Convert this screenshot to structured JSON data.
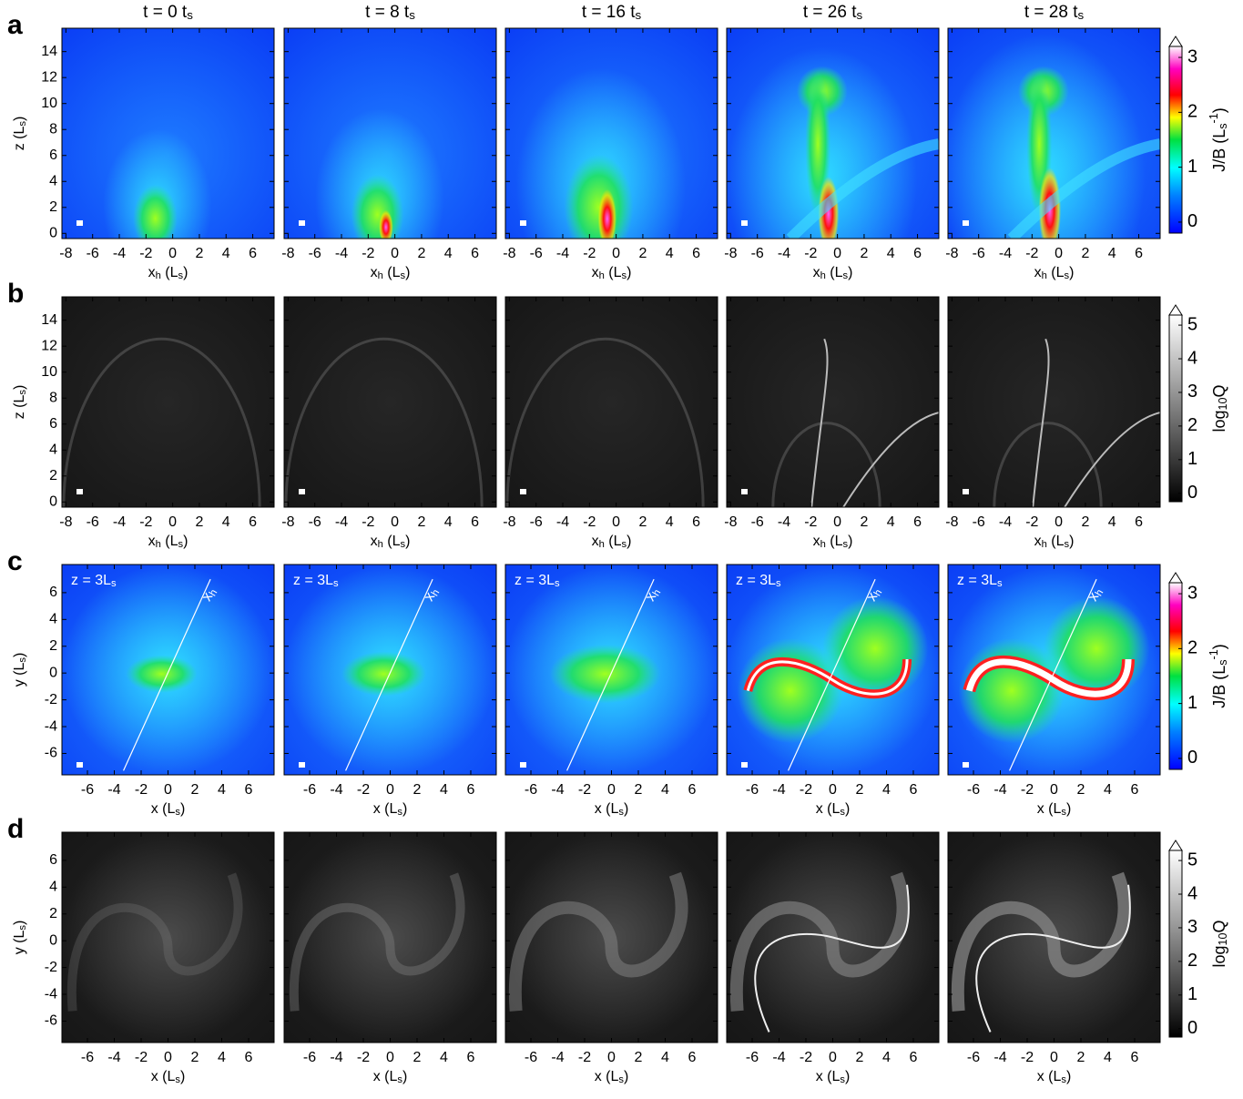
{
  "columns": [
    [
      {
        "text": "t = 0 t"
      },
      {
        "text": "s",
        "sub": true
      }
    ],
    [
      {
        "text": "t = 8 t"
      },
      {
        "text": "s",
        "sub": true
      }
    ],
    [
      {
        "text": "t = 16 t"
      },
      {
        "text": "s",
        "sub": true
      }
    ],
    [
      {
        "text": "t = 26 t"
      },
      {
        "text": "s",
        "sub": true
      }
    ],
    [
      {
        "text": "t = 28 t"
      },
      {
        "text": "s",
        "sub": true
      }
    ]
  ],
  "rows": [
    {
      "label": "a",
      "colormap": "jet",
      "x_label": [
        {
          "text": "x"
        },
        {
          "text": "h",
          "sub": true
        },
        {
          "text": " (L"
        },
        {
          "text": "s",
          "sub": true
        },
        {
          "text": ")"
        }
      ],
      "y_label": [
        {
          "text": "z (L"
        },
        {
          "text": "s",
          "sub": true
        },
        {
          "text": ")"
        }
      ],
      "xlim": [
        -8.3,
        7.6
      ],
      "ylim": [
        -0.4,
        15.8
      ],
      "xticks": [
        -8,
        -6,
        -4,
        -2,
        0,
        2,
        4,
        6
      ],
      "yticks": [
        0,
        2,
        4,
        6,
        8,
        10,
        12,
        14
      ],
      "colorbar": {
        "label": [
          {
            "text": "J/B (L"
          },
          {
            "text": "s",
            "sub": true
          },
          {
            "text": "-1",
            "sup": true
          },
          {
            "text": ")"
          }
        ],
        "lim": [
          -0.2,
          3.2
        ],
        "ticks": [
          0,
          1,
          2,
          3
        ]
      }
    },
    {
      "label": "b",
      "colormap": "gray",
      "x_label": [
        {
          "text": "x"
        },
        {
          "text": "h",
          "sub": true
        },
        {
          "text": " (L"
        },
        {
          "text": "s",
          "sub": true
        },
        {
          "text": ")"
        }
      ],
      "y_label": [
        {
          "text": "z (L"
        },
        {
          "text": "s",
          "sub": true
        },
        {
          "text": ")"
        }
      ],
      "xlim": [
        -8.3,
        7.6
      ],
      "ylim": [
        -0.4,
        15.8
      ],
      "xticks": [
        -8,
        -6,
        -4,
        -2,
        0,
        2,
        4,
        6
      ],
      "yticks": [
        0,
        2,
        4,
        6,
        8,
        10,
        12,
        14
      ],
      "colorbar": {
        "label": [
          {
            "text": "log"
          },
          {
            "text": "10",
            "sub": true
          },
          {
            "text": "Q"
          }
        ],
        "lim": [
          -0.25,
          5.3
        ],
        "ticks": [
          0,
          1,
          2,
          3,
          4,
          5
        ]
      }
    },
    {
      "label": "c",
      "colormap": "jet",
      "x_label": [
        {
          "text": "x (L"
        },
        {
          "text": "s",
          "sub": true
        },
        {
          "text": ")"
        }
      ],
      "y_label": [
        {
          "text": "y (L"
        },
        {
          "text": "s",
          "sub": true
        },
        {
          "text": ")"
        }
      ],
      "xlim": [
        -7.9,
        7.9
      ],
      "ylim": [
        -7.6,
        8.1
      ],
      "xticks": [
        -6,
        -4,
        -2,
        0,
        2,
        4,
        6
      ],
      "yticks": [
        -6,
        -4,
        -2,
        0,
        2,
        4,
        6
      ],
      "annotation": [
        {
          "text": "z = 3L"
        },
        {
          "text": "s",
          "sub": true
        }
      ],
      "line_label": [
        {
          "text": "x"
        },
        {
          "text": "h",
          "sub": true
        }
      ],
      "colorbar": {
        "label": [
          {
            "text": "J/B (L"
          },
          {
            "text": "s",
            "sub": true
          },
          {
            "text": "-1",
            "sup": true
          },
          {
            "text": ")"
          }
        ],
        "lim": [
          -0.2,
          3.2
        ],
        "ticks": [
          0,
          1,
          2,
          3
        ]
      }
    },
    {
      "label": "d",
      "colormap": "gray",
      "x_label": [
        {
          "text": "x (L"
        },
        {
          "text": "s",
          "sub": true
        },
        {
          "text": ")"
        }
      ],
      "y_label": [
        {
          "text": "y (L"
        },
        {
          "text": "s",
          "sub": true
        },
        {
          "text": ")"
        }
      ],
      "xlim": [
        -7.9,
        7.9
      ],
      "ylim": [
        -7.6,
        8.1
      ],
      "xticks": [
        -6,
        -4,
        -2,
        0,
        2,
        4,
        6
      ],
      "yticks": [
        -6,
        -4,
        -2,
        0,
        2,
        4,
        6
      ],
      "colorbar": {
        "label": [
          {
            "text": "log"
          },
          {
            "text": "10",
            "sub": true
          },
          {
            "text": "Q"
          }
        ],
        "lim": [
          -0.25,
          5.3
        ],
        "ticks": [
          0,
          1,
          2,
          3,
          4,
          5
        ]
      }
    }
  ]
}
